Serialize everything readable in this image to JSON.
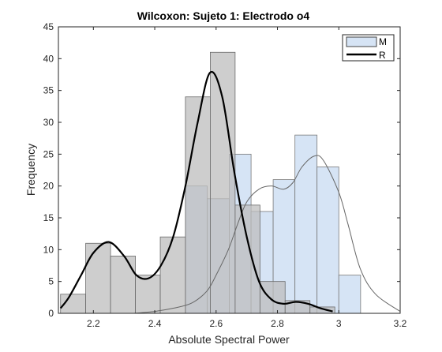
{
  "chart_data": {
    "type": "bar",
    "title": "Wilcoxon: Sujeto 1: Electrodo o4",
    "xlabel": "Absolute Spectral Power",
    "ylabel": "Frequency",
    "xlim": [
      2.086,
      3.2
    ],
    "ylim": [
      0,
      45
    ],
    "xticks": [
      "2.2",
      "2.4",
      "2.6",
      "2.8",
      "3",
      "3.2"
    ],
    "yticks": [
      "0",
      "5",
      "10",
      "15",
      "20",
      "25",
      "30",
      "35",
      "40",
      "45"
    ],
    "grid": false,
    "legend_position": "top-right",
    "series": [
      {
        "name": "M",
        "histogram": {
          "bin_width": 0.0714,
          "bins": [
            {
              "x0": 2.5,
              "x1": 2.571,
              "count": 20
            },
            {
              "x0": 2.571,
              "x1": 2.643,
              "count": 18
            },
            {
              "x0": 2.643,
              "x1": 2.714,
              "count": 25
            },
            {
              "x0": 2.714,
              "x1": 2.786,
              "count": 16
            },
            {
              "x0": 2.786,
              "x1": 2.857,
              "count": 21
            },
            {
              "x0": 2.857,
              "x1": 2.929,
              "count": 28
            },
            {
              "x0": 2.929,
              "x1": 3.0,
              "count": 23
            },
            {
              "x0": 3.0,
              "x1": 3.071,
              "count": 6
            }
          ]
        },
        "density_curve": [
          [
            2.33,
            0
          ],
          [
            2.4,
            0.3
          ],
          [
            2.46,
            0.8
          ],
          [
            2.52,
            1.6
          ],
          [
            2.57,
            3.5
          ],
          [
            2.6,
            6.0
          ],
          [
            2.64,
            10.0
          ],
          [
            2.67,
            14.0
          ],
          [
            2.7,
            17.5
          ],
          [
            2.74,
            19.5
          ],
          [
            2.78,
            20.0
          ],
          [
            2.82,
            19.5
          ],
          [
            2.85,
            20.5
          ],
          [
            2.88,
            23.0
          ],
          [
            2.92,
            24.7
          ],
          [
            2.95,
            24.0
          ],
          [
            3.0,
            19.0
          ],
          [
            3.03,
            14.0
          ],
          [
            3.07,
            7.0
          ],
          [
            3.12,
            3.0
          ],
          [
            3.2,
            0.3
          ]
        ]
      },
      {
        "name": "R",
        "histogram": {
          "bin_width": 0.0812,
          "bins": [
            {
              "x0": 2.093,
              "x1": 2.175,
              "count": 3
            },
            {
              "x0": 2.175,
              "x1": 2.256,
              "count": 11
            },
            {
              "x0": 2.256,
              "x1": 2.337,
              "count": 9
            },
            {
              "x0": 2.337,
              "x1": 2.418,
              "count": 6
            },
            {
              "x0": 2.418,
              "x1": 2.5,
              "count": 12
            },
            {
              "x0": 2.5,
              "x1": 2.581,
              "count": 34
            },
            {
              "x0": 2.581,
              "x1": 2.662,
              "count": 41
            },
            {
              "x0": 2.662,
              "x1": 2.743,
              "count": 17
            },
            {
              "x0": 2.743,
              "x1": 2.825,
              "count": 5
            },
            {
              "x0": 2.825,
              "x1": 2.906,
              "count": 2
            },
            {
              "x0": 2.906,
              "x1": 2.987,
              "count": 1
            }
          ]
        },
        "density_curve": [
          [
            2.093,
            0.8
          ],
          [
            2.12,
            2.5
          ],
          [
            2.16,
            6.0
          ],
          [
            2.2,
            9.5
          ],
          [
            2.25,
            11.2
          ],
          [
            2.3,
            9.0
          ],
          [
            2.34,
            6.0
          ],
          [
            2.38,
            5.5
          ],
          [
            2.42,
            7.5
          ],
          [
            2.46,
            12.0
          ],
          [
            2.5,
            20.0
          ],
          [
            2.54,
            30.0
          ],
          [
            2.58,
            37.8
          ],
          [
            2.62,
            34.0
          ],
          [
            2.66,
            22.0
          ],
          [
            2.7,
            12.0
          ],
          [
            2.74,
            5.0
          ],
          [
            2.78,
            2.2
          ],
          [
            2.82,
            1.5
          ],
          [
            2.86,
            1.8
          ],
          [
            2.9,
            1.5
          ],
          [
            2.94,
            0.8
          ],
          [
            2.98,
            0.3
          ]
        ]
      }
    ]
  },
  "colors": {
    "M_fill": "#d6e4f5",
    "M_edge": "#7a7a7a",
    "R_fill": "#bdbdbd",
    "R_fill_opacity": 0.75,
    "R_edge": "#6a6a6a",
    "R_curve": "#000000",
    "M_curve": "#666666",
    "axis": "#262626"
  }
}
